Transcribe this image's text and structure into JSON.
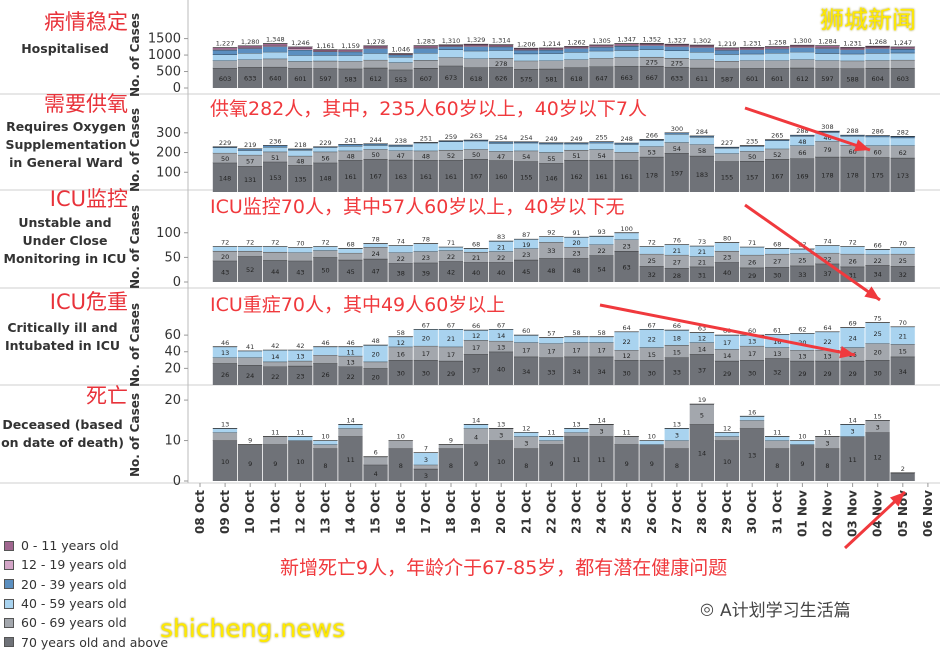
{
  "colors": {
    "age_0_11": "#a0668f",
    "age_12_19": "#d4a6c8",
    "age_20_39": "#5b8fc0",
    "age_40_59": "#a9d3ef",
    "age_60_69": "#a3a7ad",
    "age_70_plus": "#6f7278",
    "annotation": "#f0393d",
    "watermark": "#ffea00"
  },
  "chart_data": {
    "type": "bar",
    "stacked": true,
    "categories": [
      "08 Oct",
      "09 Oct",
      "10 Oct",
      "11 Oct",
      "12 Oct",
      "13 Oct",
      "14 Oct",
      "15 Oct",
      "16 Oct",
      "17 Oct",
      "18 Oct",
      "19 Oct",
      "20 Oct",
      "21 Oct",
      "22 Oct",
      "23 Oct",
      "24 Oct",
      "25 Oct",
      "26 Oct",
      "27 Oct",
      "28 Oct",
      "29 Oct",
      "30 Oct",
      "31 Oct",
      "01 Nov",
      "02 Nov",
      "03 Nov",
      "04 Nov",
      "05 Nov",
      "06 Nov"
    ],
    "bar_categories_start": "09 Oct",
    "legend": [
      "0 - 11 years old",
      "12 - 19 years old",
      "20 - 39 years old",
      "40 - 59 years old",
      "60 - 69 years old",
      "70 years old and above"
    ],
    "legend_placement": "bottom-left",
    "ylabel": "No. of Cases",
    "panels": [
      {
        "title": "Hospitalised",
        "title_cn": "病情稳定",
        "ylim": [
          0,
          1700
        ],
        "ticks": [
          0,
          500,
          1000,
          1500
        ],
        "totals": [
          1227,
          1280,
          1348,
          1246,
          1161,
          1159,
          1278,
          1046,
          1283,
          1310,
          1329,
          1314,
          1206,
          1214,
          1262,
          1305,
          1347,
          1352,
          1327,
          1302,
          1219,
          1231,
          1258,
          1300,
          1284,
          1231,
          1268,
          1247
        ],
        "segments": {
          "age_70_plus": [
            603,
            633,
            640,
            601,
            597,
            583,
            612,
            553,
            607,
            673,
            618,
            626,
            575,
            581,
            618,
            647,
            663,
            667,
            633,
            611,
            587,
            601,
            601,
            612,
            597,
            588,
            604,
            603
          ],
          "age_60_69": [
            227,
            227,
            248,
            208,
            227,
            231,
            240,
            218,
            240,
            258,
            272,
            278,
            250,
            248,
            245,
            258,
            267,
            275,
            275,
            256,
            232,
            235,
            235,
            251,
            240,
            238,
            236,
            249
          ],
          "age_40_59": [
            182,
            202,
            207,
            183,
            168,
            174,
            201,
            171,
            214,
            233,
            237,
            236,
            214,
            216,
            225,
            221,
            215,
            226,
            225,
            224,
            206,
            200,
            224,
            231,
            215,
            210,
            219,
            215
          ],
          "age_20_39": [
            140,
            142,
            164,
            165,
            110,
            111,
            146,
            68,
            144,
            95,
            131,
            113,
            109,
            110,
            113,
            116,
            131,
            120,
            126,
            137,
            126,
            127,
            129,
            134,
            151,
            127,
            136,
            117
          ],
          "age_12_19": [
            32,
            33,
            38,
            38,
            25,
            26,
            34,
            16,
            33,
            22,
            30,
            26,
            25,
            25,
            26,
            27,
            30,
            28,
            29,
            32,
            29,
            29,
            30,
            31,
            35,
            29,
            31,
            27
          ],
          "age_0_11": [
            43,
            43,
            51,
            51,
            34,
            34,
            45,
            20,
            45,
            29,
            41,
            35,
            33,
            34,
            35,
            36,
            41,
            36,
            39,
            42,
            39,
            39,
            39,
            41,
            46,
            39,
            42,
            36
          ]
        }
      },
      {
        "title": "Requires Oxygen Supplementation in General Ward",
        "title_cn": "需要供氧",
        "ylim": [
          0,
          365
        ],
        "ticks": [
          100,
          200,
          300
        ],
        "totals": [
          229,
          219,
          236,
          218,
          229,
          241,
          244,
          238,
          251,
          259,
          263,
          254,
          254,
          249,
          249,
          255,
          248,
          266,
          300,
          284,
          227,
          235,
          265,
          288,
          308,
          288,
          286,
          282
        ],
        "segments": {
          "age_70_plus": [
            148,
            131,
            153,
            135,
            148,
            161,
            167,
            163,
            161,
            161,
            167,
            160,
            155,
            146,
            162,
            161,
            161,
            178,
            197,
            183,
            155,
            157,
            167,
            169,
            178,
            178,
            175,
            173
          ],
          "age_60_69": [
            50,
            57,
            51,
            48,
            56,
            48,
            50,
            47,
            48,
            52,
            50,
            47,
            54,
            55,
            51,
            54,
            41,
            53,
            54,
            58,
            40,
            50,
            52,
            66,
            79,
            60,
            60,
            62
          ],
          "age_40_59": [
            27,
            23,
            24,
            30,
            22,
            24,
            20,
            22,
            40,
            42,
            42,
            40,
            40,
            43,
            31,
            34,
            40,
            30,
            43,
            38,
            28,
            24,
            41,
            48,
            46,
            45,
            45,
            40
          ],
          "age_20_39": [
            4,
            8,
            8,
            5,
            3,
            8,
            7,
            6,
            2,
            4,
            4,
            7,
            5,
            5,
            5,
            6,
            6,
            5,
            6,
            5,
            4,
            4,
            5,
            5,
            5,
            5,
            6,
            7
          ]
        }
      },
      {
        "title": "Unstable and Under Close Monitoring in ICU",
        "title_cn": "ICU监控",
        "ylim": [
          0,
          130
        ],
        "ticks": [
          0,
          50,
          100
        ],
        "totals": [
          72,
          72,
          72,
          70,
          72,
          68,
          78,
          74,
          78,
          71,
          68,
          83,
          87,
          92,
          91,
          93,
          100,
          72,
          76,
          73,
          80,
          71,
          68,
          67,
          74,
          72,
          66,
          70
        ],
        "segments": {
          "age_70_plus": [
            43,
            52,
            44,
            43,
            50,
            45,
            47,
            38,
            39,
            42,
            40,
            40,
            45,
            48,
            48,
            54,
            63,
            32,
            28,
            31,
            40,
            29,
            30,
            33,
            37,
            31,
            34,
            32
          ],
          "age_60_69": [
            20,
            11,
            17,
            17,
            14,
            14,
            24,
            22,
            23,
            22,
            21,
            22,
            23,
            33,
            23,
            22,
            23,
            25,
            27,
            21,
            23,
            26,
            27,
            25,
            22,
            26,
            22,
            25
          ],
          "age_40_59": [
            9,
            9,
            11,
            10,
            8,
            9,
            7,
            14,
            16,
            7,
            7,
            21,
            19,
            11,
            20,
            17,
            14,
            15,
            21,
            21,
            17,
            16,
            11,
            9,
            15,
            15,
            10,
            13
          ]
        }
      },
      {
        "title": "Critically ill and Intubated in ICU",
        "title_cn": "ICU危重",
        "ylim": [
          0,
          83
        ],
        "ticks": [
          20,
          40,
          60
        ],
        "totals": [
          46,
          41,
          42,
          42,
          46,
          46,
          48,
          58,
          67,
          67,
          66,
          67,
          60,
          57,
          58,
          58,
          64,
          67,
          66,
          63,
          60,
          60,
          61,
          62,
          64,
          69,
          75,
          70
        ],
        "segments": {
          "age_70_plus": [
            26,
            24,
            22,
            23,
            26,
            22,
            20,
            30,
            30,
            29,
            37,
            40,
            34,
            33,
            34,
            34,
            30,
            30,
            33,
            37,
            29,
            30,
            32,
            29,
            29,
            29,
            30,
            34
          ],
          "age_60_69": [
            7,
            9,
            6,
            6,
            10,
            13,
            8,
            16,
            17,
            17,
            17,
            13,
            17,
            17,
            17,
            17,
            12,
            15,
            15,
            14,
            14,
            17,
            13,
            13,
            13,
            16,
            20,
            15
          ],
          "age_40_59": [
            13,
            8,
            14,
            13,
            10,
            11,
            20,
            12,
            20,
            21,
            12,
            14,
            9,
            7,
            7,
            7,
            22,
            22,
            18,
            12,
            17,
            13,
            16,
            20,
            22,
            24,
            25,
            21
          ]
        }
      },
      {
        "title": "Deceased (based on date of death)",
        "title_cn": "死亡",
        "ylim": [
          0,
          22
        ],
        "ticks": [
          0,
          10,
          20
        ],
        "totals": [
          13,
          9,
          11,
          11,
          10,
          14,
          6,
          10,
          7,
          9,
          14,
          13,
          12,
          11,
          13,
          14,
          11,
          10,
          13,
          19,
          12,
          16,
          11,
          10,
          11,
          14,
          15,
          2
        ],
        "segments": {
          "age_70_plus": [
            10,
            9,
            9,
            10,
            8,
            11,
            4,
            8,
            3,
            8,
            9,
            10,
            8,
            9,
            11,
            11,
            9,
            9,
            8,
            14,
            10,
            13,
            8,
            9,
            8,
            11,
            12,
            2
          ],
          "age_60_69": [
            2,
            0,
            2,
            0,
            1,
            2,
            2,
            2,
            1,
            1,
            4,
            3,
            3,
            1,
            1,
            3,
            2,
            0,
            2,
            5,
            1,
            2,
            2,
            0,
            3,
            0,
            3,
            0
          ],
          "age_40_59": [
            1,
            0,
            0,
            1,
            1,
            1,
            0,
            0,
            3,
            0,
            1,
            0,
            1,
            1,
            1,
            0,
            0,
            1,
            3,
            0,
            1,
            1,
            1,
            1,
            0,
            3,
            0,
            0
          ]
        }
      }
    ]
  },
  "annotations": [
    "供氧282人，其中，235人60岁以上，40岁以下7人",
    "ICU监控70人，其中57人60岁以上，40岁以下无",
    "ICU重症70人，其中49人60岁以上",
    "新增死亡9人，年龄介于67-85岁，都有潜在健康问题"
  ],
  "watermarks": {
    "top_right": "狮城新闻",
    "bottom_left": "shicheng.news",
    "bottom_right": "A计划学习生活篇"
  }
}
